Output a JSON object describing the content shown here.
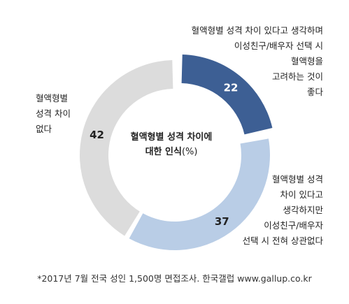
{
  "chart_data": {
    "type": "pie",
    "center_title": {
      "line1": "혈액형별 성격 차이에",
      "line2_bold": "대한 인식",
      "line2_unit": "(%)"
    },
    "slices": [
      {
        "value": 22,
        "color": "#3d5f94",
        "text_color": "#ffffff",
        "label_lines": [
          "혈액형별 성격 차이 있다고 생각하며",
          "이성친구/배우자 선택 시",
          "혈액형을",
          "고려하는 것이",
          "좋다"
        ]
      },
      {
        "value": 37,
        "color": "#b9cde6",
        "text_color": "#222222",
        "label_lines": [
          "혈액형별 성격",
          "차이 있다고",
          "생각하지만",
          "이성친구/배우자",
          "선택 시 전혀 상관없다"
        ]
      },
      {
        "value": 42,
        "color": "#dcdcdc",
        "text_color": "#222222",
        "label_lines": [
          "혈액형별",
          "성격 차이",
          "없다"
        ]
      }
    ]
  },
  "footnote": "*2017년 7월 전국 성인 1,500명 면접조사. 한국갤럽 www.gallup.co.kr"
}
